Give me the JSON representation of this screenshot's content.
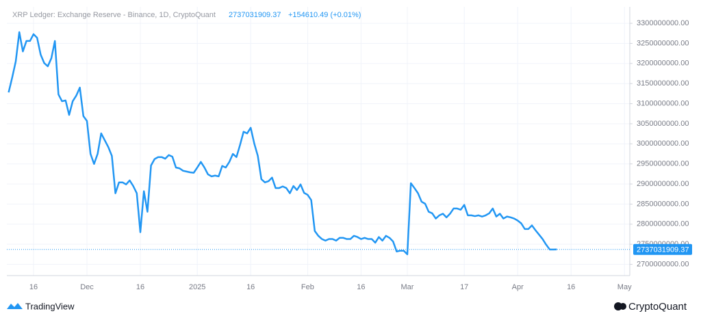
{
  "chart_data": {
    "type": "line",
    "title": "XRP Ledger: Exchange Reserve - Binance, 1D, CryptoQuant",
    "last_value": "2737031909.37",
    "change": "+154610.49 (+0.01%)",
    "color": "#2196f3",
    "grid": true,
    "categories": [
      null,
      null,
      null,
      null,
      null,
      null,
      null,
      "16",
      null,
      null,
      null,
      null,
      null,
      null,
      null,
      null,
      null,
      null,
      null,
      null,
      null,
      null,
      "Dec",
      null,
      null,
      null,
      null,
      null,
      null,
      null,
      null,
      null,
      null,
      null,
      null,
      null,
      null,
      "16",
      null,
      null,
      null,
      null,
      null,
      null,
      null,
      null,
      null,
      null,
      null,
      null,
      null,
      null,
      null,
      "2025",
      null,
      null,
      null,
      null,
      null,
      null,
      null,
      null,
      null,
      null,
      null,
      null,
      null,
      null,
      "16",
      null,
      null,
      null,
      null,
      null,
      null,
      null,
      null,
      null,
      null,
      null,
      null,
      null,
      null,
      null,
      "Feb",
      null,
      null,
      null,
      null,
      null,
      null,
      null,
      null,
      null,
      null,
      null,
      null,
      null,
      null,
      "16",
      null,
      null,
      null,
      null,
      null,
      null,
      null,
      null,
      null,
      null,
      null,
      null,
      "Mar",
      null,
      null,
      null,
      null,
      null,
      null,
      null,
      null,
      null,
      null,
      null,
      null,
      null,
      null,
      null,
      "17",
      null,
      null,
      null,
      null,
      null,
      null,
      null,
      null,
      null,
      null,
      null,
      null,
      null,
      null,
      "Apr",
      null,
      null,
      null,
      null,
      null,
      null,
      null,
      null,
      null,
      null,
      null,
      null,
      null,
      null,
      "16",
      null,
      null,
      null,
      null,
      null,
      null,
      null,
      null,
      null,
      null,
      null,
      null,
      null,
      null,
      "May",
      null
    ],
    "values": [
      3128000000,
      3165000000,
      3205000000,
      3278000000,
      3230000000,
      3256000000,
      3256000000,
      3273000000,
      3264000000,
      3222000000,
      3201000000,
      3193000000,
      3213000000,
      3256000000,
      3123000000,
      3106000000,
      3108000000,
      3072000000,
      3106000000,
      3120000000,
      3140000000,
      3069000000,
      3057000000,
      2975000000,
      2950000000,
      2975000000,
      3026000000,
      3009000000,
      2992000000,
      2970000000,
      2877000000,
      2904000000,
      2904000000,
      2899000000,
      2909000000,
      2895000000,
      2877000000,
      2780000000,
      2882000000,
      2831000000,
      2946000000,
      2962000000,
      2967000000,
      2967000000,
      2963000000,
      2972000000,
      2968000000,
      2941000000,
      2939000000,
      2933000000,
      2931000000,
      2929000000,
      2928000000,
      2941000000,
      2955000000,
      2941000000,
      2924000000,
      2919000000,
      2921000000,
      2919000000,
      2945000000,
      2941000000,
      2955000000,
      2975000000,
      2967000000,
      2997000000,
      3030000000,
      3026000000,
      3040000000,
      3001000000,
      2970000000,
      2912000000,
      2904000000,
      2907000000,
      2916000000,
      2890000000,
      2890000000,
      2894000000,
      2890000000,
      2877000000,
      2895000000,
      2885000000,
      2899000000,
      2878000000,
      2873000000,
      2860000000,
      2783000000,
      2771000000,
      2763000000,
      2759000000,
      2763000000,
      2763000000,
      2759000000,
      2766000000,
      2766000000,
      2763000000,
      2763000000,
      2771000000,
      2768000000,
      2763000000,
      2766000000,
      2763000000,
      2763000000,
      2754000000,
      2768000000,
      2759000000,
      2771000000,
      2766000000,
      2757000000,
      2732000000,
      2734000000,
      2734000000,
      2725000000,
      2902000000,
      2890000000,
      2877000000,
      2856000000,
      2851000000,
      2831000000,
      2827000000,
      2814000000,
      2822000000,
      2826000000,
      2817000000,
      2826000000,
      2839000000,
      2839000000,
      2836000000,
      2848000000,
      2822000000,
      2822000000,
      2820000000,
      2822000000,
      2819000000,
      2822000000,
      2827000000,
      2839000000,
      2819000000,
      2826000000,
      2814000000,
      2819000000,
      2817000000,
      2814000000,
      2809000000,
      2802000000,
      2788000000,
      2788000000,
      2797000000,
      2785000000,
      2774000000,
      2763000000,
      2749000000,
      2737000000,
      2737000000,
      2737031909.37,
      null,
      null,
      null,
      null,
      null,
      null,
      null,
      null,
      null,
      null,
      null,
      null,
      null,
      null,
      null,
      null,
      null,
      null,
      null,
      null
    ],
    "ylim": [
      2672000000,
      3341000000
    ],
    "yticks": [
      {
        "value": 2700000000,
        "label": "2700000000.00"
      },
      {
        "value": 2750000000,
        "label": "2750000000.00"
      },
      {
        "value": 2800000000,
        "label": "2800000000.00"
      },
      {
        "value": 2850000000,
        "label": "2850000000.00"
      },
      {
        "value": 2900000000,
        "label": "2900000000.00"
      },
      {
        "value": 2950000000,
        "label": "2950000000.00"
      },
      {
        "value": 3000000000,
        "label": "3000000000.00"
      },
      {
        "value": 3050000000,
        "label": "3050000000.00"
      },
      {
        "value": 3100000000,
        "label": "3100000000.00"
      },
      {
        "value": 3150000000,
        "label": "3150000000.00"
      },
      {
        "value": 3200000000,
        "label": "3200000000.00"
      },
      {
        "value": 3250000000,
        "label": "3250000000.00"
      },
      {
        "value": 3300000000,
        "label": "3300000000.00"
      }
    ]
  },
  "footer": {
    "left_brand": "TradingView",
    "right_brand": "CryptoQuant"
  }
}
